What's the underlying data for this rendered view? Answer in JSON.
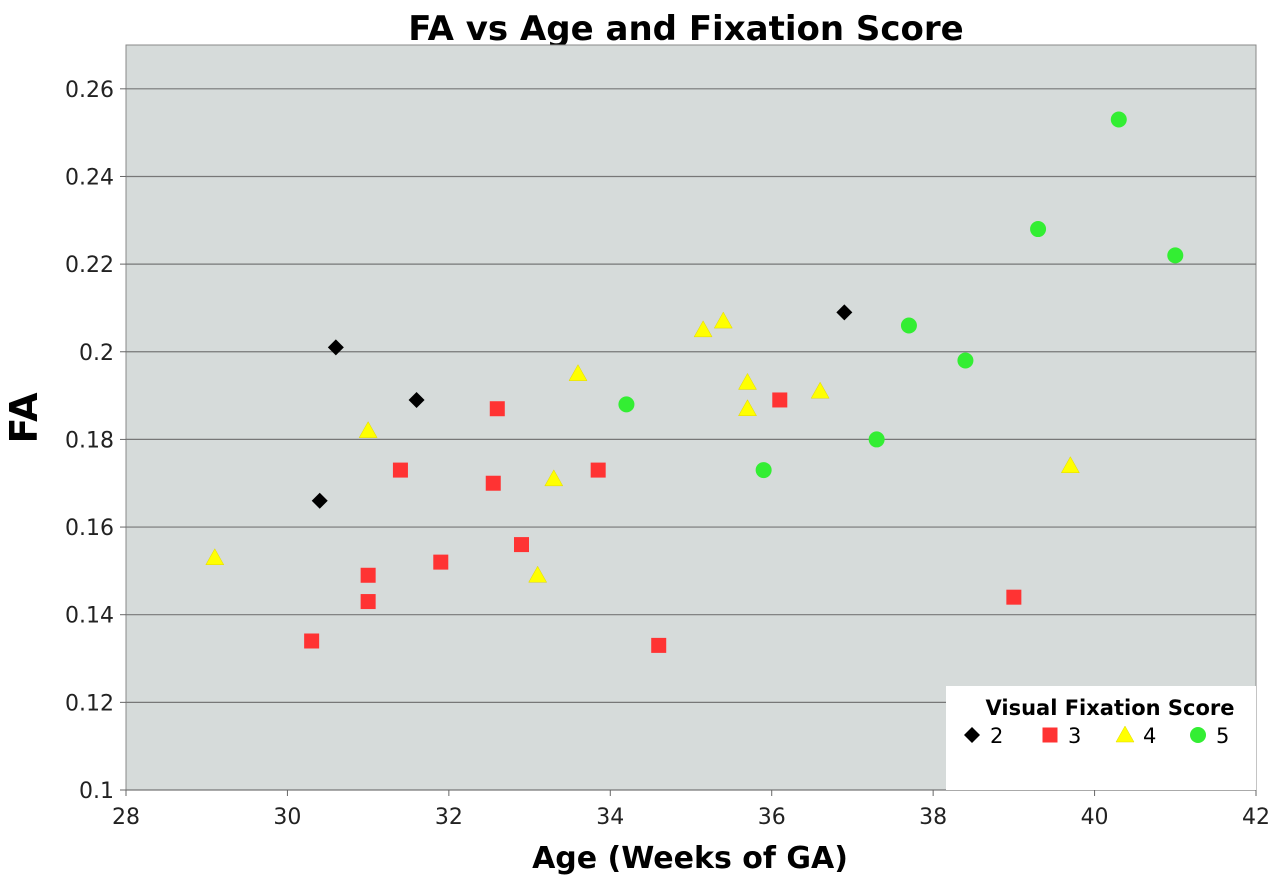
{
  "chart_data": {
    "type": "scatter",
    "title": "FA vs Age and Fixation Score",
    "xlabel": "Age (Weeks of GA)",
    "ylabel": "FA",
    "xlim": [
      28,
      42
    ],
    "ylim": [
      0.1,
      0.27
    ],
    "xticks": [
      "28",
      "30",
      "32",
      "34",
      "36",
      "38",
      "40",
      "42"
    ],
    "yticks": [
      "0.1",
      "0.12",
      "0.14",
      "0.16",
      "0.18",
      "0.2",
      "0.22",
      "0.24",
      "0.26"
    ],
    "grid": "horizontal",
    "plot_background": "#d6dbda",
    "legend_position": "bottom-right",
    "legend_title": "Visual Fixation Score",
    "series": [
      {
        "name": "2",
        "marker": "diamond",
        "color": "#000000",
        "points": [
          [
            30.4,
            0.166
          ],
          [
            30.6,
            0.201
          ],
          [
            31.6,
            0.189
          ],
          [
            36.9,
            0.209
          ]
        ]
      },
      {
        "name": "3",
        "marker": "square",
        "color": "#ff3333",
        "points": [
          [
            30.3,
            0.134
          ],
          [
            31.0,
            0.149
          ],
          [
            31.0,
            0.143
          ],
          [
            31.4,
            0.173
          ],
          [
            31.9,
            0.152
          ],
          [
            32.55,
            0.17
          ],
          [
            32.6,
            0.187
          ],
          [
            32.9,
            0.156
          ],
          [
            33.85,
            0.173
          ],
          [
            34.6,
            0.133
          ],
          [
            36.1,
            0.189
          ],
          [
            39.0,
            0.144
          ]
        ]
      },
      {
        "name": "4",
        "marker": "triangle",
        "color": "#ffff00",
        "points": [
          [
            29.1,
            0.153
          ],
          [
            31.0,
            0.182
          ],
          [
            33.1,
            0.149
          ],
          [
            33.3,
            0.171
          ],
          [
            33.6,
            0.195
          ],
          [
            35.15,
            0.205
          ],
          [
            35.4,
            0.207
          ],
          [
            35.7,
            0.193
          ],
          [
            35.7,
            0.187
          ],
          [
            36.6,
            0.191
          ],
          [
            39.7,
            0.174
          ]
        ]
      },
      {
        "name": "5",
        "marker": "circle",
        "color": "#33ee33",
        "points": [
          [
            34.2,
            0.188
          ],
          [
            35.9,
            0.173
          ],
          [
            37.3,
            0.18
          ],
          [
            37.7,
            0.206
          ],
          [
            38.4,
            0.198
          ],
          [
            39.3,
            0.228
          ],
          [
            40.3,
            0.253
          ],
          [
            41.0,
            0.222
          ]
        ]
      }
    ]
  }
}
